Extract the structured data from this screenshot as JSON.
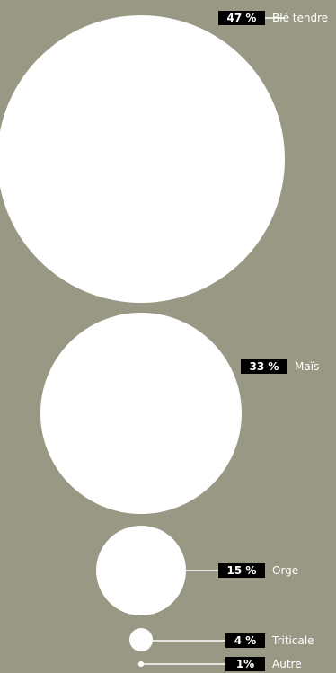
{
  "chart_data": {
    "type": "bubble",
    "background": "#999885",
    "bubble_color": "#ffffff",
    "label_box_color": "#000000",
    "items": [
      {
        "label": "Blé tendre",
        "value": 47,
        "pct_label": "47 %"
      },
      {
        "label": "Maïs",
        "value": 33,
        "pct_label": "33 %"
      },
      {
        "label": "Orge",
        "value": 15,
        "pct_label": "15 %"
      },
      {
        "label": "Triticale",
        "value": 4,
        "pct_label": "4 %"
      },
      {
        "label": "Autre",
        "value": 1,
        "pct_label": "1%"
      }
    ]
  }
}
